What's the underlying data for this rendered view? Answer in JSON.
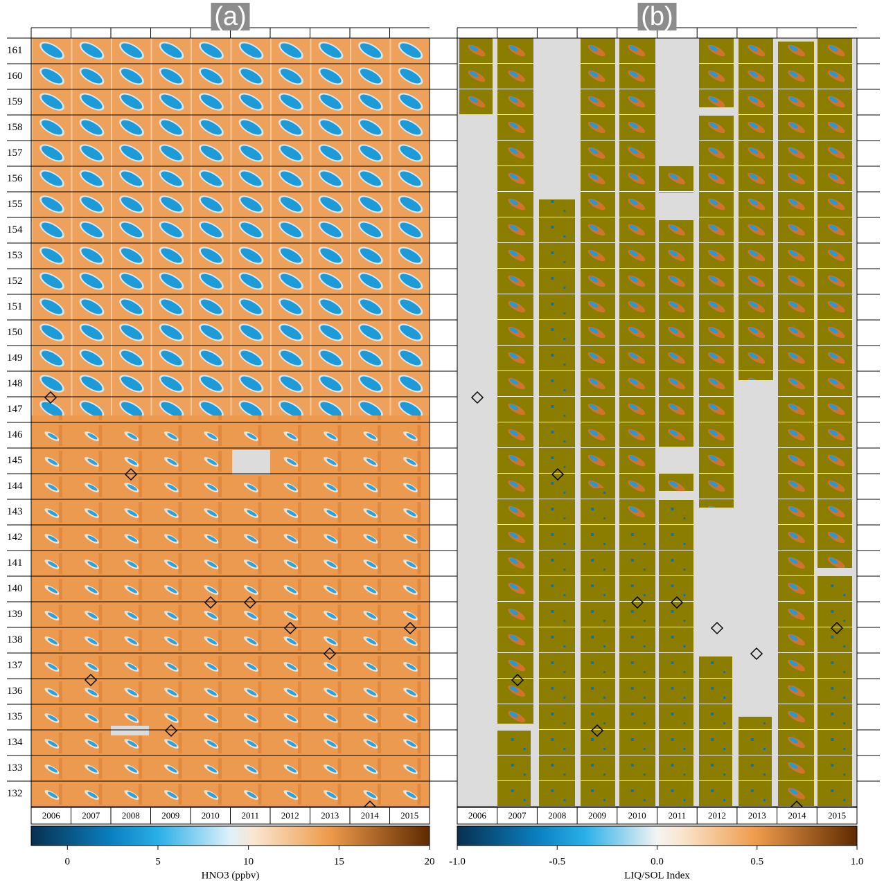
{
  "chart_data": [
    {
      "type": "heatmap",
      "panel_label": "(a)",
      "categories": [
        "2006",
        "2007",
        "2008",
        "2009",
        "2010",
        "2011",
        "2012",
        "2013",
        "2014",
        "2015"
      ],
      "ylim": [
        131.5,
        161.5
      ],
      "yticks": [
        132,
        133,
        134,
        135,
        136,
        137,
        138,
        139,
        140,
        141,
        142,
        143,
        144,
        145,
        146,
        147,
        148,
        149,
        150,
        151,
        152,
        153,
        154,
        155,
        156,
        157,
        158,
        159,
        160,
        161
      ],
      "colorbar": {
        "label": "HNO3 (ppbv)",
        "lim": [
          -2,
          20
        ],
        "ticks": [
          0,
          5,
          10,
          15,
          20
        ]
      }
    },
    {
      "type": "heatmap",
      "panel_label": "(b)",
      "categories": [
        "2006",
        "2007",
        "2008",
        "2009",
        "2010",
        "2011",
        "2012",
        "2013",
        "2014",
        "2015"
      ],
      "ylim": [
        131.5,
        161.5
      ],
      "yticks": [
        132,
        133,
        134,
        135,
        136,
        137,
        138,
        139,
        140,
        141,
        142,
        143,
        144,
        145,
        146,
        147,
        148,
        149,
        150,
        151,
        152,
        153,
        154,
        155,
        156,
        157,
        158,
        159,
        160,
        161
      ],
      "colorbar": {
        "label": "LIQ/SOL Index",
        "lim": [
          -1,
          1
        ],
        "ticks": [
          {
            "value": -1,
            "label": "-1.0"
          },
          -0.5,
          {
            "value": 0,
            "label": "0.0"
          },
          0.5,
          {
            "value": 1,
            "label": "1.0"
          }
        ]
      }
    }
  ]
}
